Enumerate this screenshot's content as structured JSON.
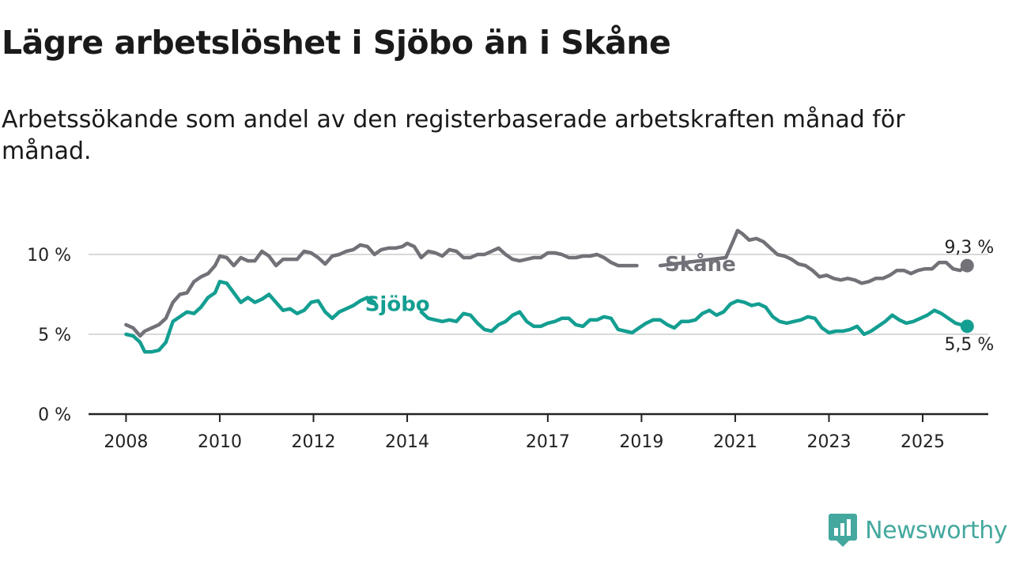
{
  "title": "Lägre arbetslöshet i Sjöbo än i Skåne",
  "subtitle": "Arbetssökande som andel av den registerbaserade arbetskraften månad för månad.",
  "brand": "Newsworthy",
  "colors": {
    "skane": "#737178",
    "sjobo": "#139e91",
    "grid": "#d9d9d9",
    "axis": "#222222",
    "brand": "#44a89f"
  },
  "chart_data": {
    "type": "line",
    "x_unit": "year (decimal)",
    "xlim": [
      2007.2,
      2026.4
    ],
    "ylim": [
      0,
      10
    ],
    "y_ticks": [
      {
        "value": 0,
        "label": "0 %"
      },
      {
        "value": 5,
        "label": "5 %"
      },
      {
        "value": 10,
        "label": "10 %"
      }
    ],
    "x_ticks": [
      {
        "value": 2008,
        "label": "2008"
      },
      {
        "value": 2010,
        "label": "2010"
      },
      {
        "value": 2012,
        "label": "2012"
      },
      {
        "value": 2014,
        "label": "2014"
      },
      {
        "value": 2017,
        "label": "2017"
      },
      {
        "value": 2019,
        "label": "2019"
      },
      {
        "value": 2021,
        "label": "2021"
      },
      {
        "value": 2023,
        "label": "2023"
      },
      {
        "value": 2025,
        "label": "2025"
      }
    ],
    "grid": true,
    "series": [
      {
        "name": "Skåne",
        "key": "skane",
        "end_label": "9,3 %",
        "label_at": [
          2019.5,
          9.4
        ],
        "gaps": [
          [
            2018.9,
            2019.4
          ],
          [
            2019.6,
            2020.8
          ]
        ],
        "points": [
          [
            2008.0,
            5.6
          ],
          [
            2008.15,
            5.4
          ],
          [
            2008.3,
            4.9
          ],
          [
            2008.4,
            5.2
          ],
          [
            2008.55,
            5.4
          ],
          [
            2008.7,
            5.6
          ],
          [
            2008.85,
            6.0
          ],
          [
            2009.0,
            7.0
          ],
          [
            2009.15,
            7.5
          ],
          [
            2009.3,
            7.6
          ],
          [
            2009.45,
            8.3
          ],
          [
            2009.6,
            8.6
          ],
          [
            2009.75,
            8.8
          ],
          [
            2009.9,
            9.3
          ],
          [
            2010.0,
            9.9
          ],
          [
            2010.15,
            9.8
          ],
          [
            2010.3,
            9.3
          ],
          [
            2010.45,
            9.8
          ],
          [
            2010.6,
            9.6
          ],
          [
            2010.75,
            9.6
          ],
          [
            2010.9,
            10.2
          ],
          [
            2011.05,
            9.9
          ],
          [
            2011.2,
            9.3
          ],
          [
            2011.35,
            9.7
          ],
          [
            2011.5,
            9.7
          ],
          [
            2011.65,
            9.7
          ],
          [
            2011.8,
            10.2
          ],
          [
            2011.95,
            10.1
          ],
          [
            2012.1,
            9.8
          ],
          [
            2012.25,
            9.4
          ],
          [
            2012.4,
            9.9
          ],
          [
            2012.55,
            10.0
          ],
          [
            2012.7,
            10.2
          ],
          [
            2012.85,
            10.3
          ],
          [
            2013.0,
            10.6
          ],
          [
            2013.15,
            10.5
          ],
          [
            2013.3,
            10.0
          ],
          [
            2013.45,
            10.3
          ],
          [
            2013.6,
            10.4
          ],
          [
            2013.75,
            10.4
          ],
          [
            2013.9,
            10.5
          ],
          [
            2014.0,
            10.7
          ],
          [
            2014.15,
            10.5
          ],
          [
            2014.3,
            9.8
          ],
          [
            2014.45,
            10.2
          ],
          [
            2014.6,
            10.1
          ],
          [
            2014.75,
            9.9
          ],
          [
            2014.9,
            10.3
          ],
          [
            2015.05,
            10.2
          ],
          [
            2015.2,
            9.8
          ],
          [
            2015.35,
            9.8
          ],
          [
            2015.5,
            10.0
          ],
          [
            2015.65,
            10.0
          ],
          [
            2015.8,
            10.2
          ],
          [
            2015.95,
            10.4
          ],
          [
            2016.1,
            10.0
          ],
          [
            2016.25,
            9.7
          ],
          [
            2016.4,
            9.6
          ],
          [
            2016.55,
            9.7
          ],
          [
            2016.7,
            9.8
          ],
          [
            2016.85,
            9.8
          ],
          [
            2017.0,
            10.1
          ],
          [
            2017.15,
            10.1
          ],
          [
            2017.3,
            10.0
          ],
          [
            2017.45,
            9.8
          ],
          [
            2017.6,
            9.8
          ],
          [
            2017.75,
            9.9
          ],
          [
            2017.9,
            9.9
          ],
          [
            2018.05,
            10.0
          ],
          [
            2018.2,
            9.8
          ],
          [
            2018.35,
            9.5
          ],
          [
            2018.5,
            9.3
          ],
          [
            2018.65,
            9.3
          ],
          [
            2018.8,
            9.3
          ],
          [
            2018.9,
            9.3
          ],
          [
            2019.4,
            9.3
          ],
          [
            2020.8,
            9.8
          ],
          [
            2020.95,
            10.8
          ],
          [
            2021.05,
            11.5
          ],
          [
            2021.15,
            11.3
          ],
          [
            2021.3,
            10.9
          ],
          [
            2021.45,
            11.0
          ],
          [
            2021.6,
            10.8
          ],
          [
            2021.75,
            10.4
          ],
          [
            2021.9,
            10.0
          ],
          [
            2022.05,
            9.9
          ],
          [
            2022.2,
            9.7
          ],
          [
            2022.35,
            9.4
          ],
          [
            2022.5,
            9.3
          ],
          [
            2022.65,
            9.0
          ],
          [
            2022.8,
            8.6
          ],
          [
            2022.95,
            8.7
          ],
          [
            2023.1,
            8.5
          ],
          [
            2023.25,
            8.4
          ],
          [
            2023.4,
            8.5
          ],
          [
            2023.55,
            8.4
          ],
          [
            2023.7,
            8.2
          ],
          [
            2023.85,
            8.3
          ],
          [
            2024.0,
            8.5
          ],
          [
            2024.15,
            8.5
          ],
          [
            2024.3,
            8.7
          ],
          [
            2024.45,
            9.0
          ],
          [
            2024.6,
            9.0
          ],
          [
            2024.75,
            8.8
          ],
          [
            2024.9,
            9.0
          ],
          [
            2025.05,
            9.1
          ],
          [
            2025.2,
            9.1
          ],
          [
            2025.35,
            9.5
          ],
          [
            2025.5,
            9.5
          ],
          [
            2025.65,
            9.1
          ],
          [
            2025.8,
            9.0
          ],
          [
            2025.95,
            9.3
          ]
        ]
      },
      {
        "name": "Sjöbo",
        "key": "sjobo",
        "end_label": "5,5 %",
        "label_at": [
          2013.1,
          6.9
        ],
        "gaps": [
          [
            2013.3,
            2014.3
          ]
        ],
        "points": [
          [
            2008.0,
            5.0
          ],
          [
            2008.15,
            4.9
          ],
          [
            2008.3,
            4.5
          ],
          [
            2008.4,
            3.9
          ],
          [
            2008.55,
            3.9
          ],
          [
            2008.7,
            4.0
          ],
          [
            2008.85,
            4.5
          ],
          [
            2009.0,
            5.8
          ],
          [
            2009.15,
            6.1
          ],
          [
            2009.3,
            6.4
          ],
          [
            2009.45,
            6.3
          ],
          [
            2009.6,
            6.7
          ],
          [
            2009.75,
            7.3
          ],
          [
            2009.9,
            7.6
          ],
          [
            2010.0,
            8.3
          ],
          [
            2010.15,
            8.2
          ],
          [
            2010.3,
            7.6
          ],
          [
            2010.45,
            7.0
          ],
          [
            2010.6,
            7.3
          ],
          [
            2010.75,
            7.0
          ],
          [
            2010.9,
            7.2
          ],
          [
            2011.05,
            7.5
          ],
          [
            2011.2,
            7.0
          ],
          [
            2011.35,
            6.5
          ],
          [
            2011.5,
            6.6
          ],
          [
            2011.65,
            6.3
          ],
          [
            2011.8,
            6.5
          ],
          [
            2011.95,
            7.0
          ],
          [
            2012.1,
            7.1
          ],
          [
            2012.25,
            6.4
          ],
          [
            2012.4,
            6.0
          ],
          [
            2012.55,
            6.4
          ],
          [
            2012.7,
            6.6
          ],
          [
            2012.85,
            6.8
          ],
          [
            2013.0,
            7.1
          ],
          [
            2013.15,
            7.3
          ],
          [
            2013.3,
            7.0
          ],
          [
            2014.3,
            6.4
          ],
          [
            2014.45,
            6.0
          ],
          [
            2014.6,
            5.9
          ],
          [
            2014.75,
            5.8
          ],
          [
            2014.9,
            5.9
          ],
          [
            2015.05,
            5.8
          ],
          [
            2015.2,
            6.3
          ],
          [
            2015.35,
            6.2
          ],
          [
            2015.5,
            5.7
          ],
          [
            2015.65,
            5.3
          ],
          [
            2015.8,
            5.2
          ],
          [
            2015.95,
            5.6
          ],
          [
            2016.1,
            5.8
          ],
          [
            2016.25,
            6.2
          ],
          [
            2016.4,
            6.4
          ],
          [
            2016.55,
            5.8
          ],
          [
            2016.7,
            5.5
          ],
          [
            2016.85,
            5.5
          ],
          [
            2017.0,
            5.7
          ],
          [
            2017.15,
            5.8
          ],
          [
            2017.3,
            6.0
          ],
          [
            2017.45,
            6.0
          ],
          [
            2017.6,
            5.6
          ],
          [
            2017.75,
            5.5
          ],
          [
            2017.9,
            5.9
          ],
          [
            2018.05,
            5.9
          ],
          [
            2018.2,
            6.1
          ],
          [
            2018.35,
            6.0
          ],
          [
            2018.5,
            5.3
          ],
          [
            2018.65,
            5.2
          ],
          [
            2018.8,
            5.1
          ],
          [
            2018.95,
            5.4
          ],
          [
            2019.1,
            5.7
          ],
          [
            2019.25,
            5.9
          ],
          [
            2019.4,
            5.9
          ],
          [
            2019.55,
            5.6
          ],
          [
            2019.7,
            5.4
          ],
          [
            2019.85,
            5.8
          ],
          [
            2020.0,
            5.8
          ],
          [
            2020.15,
            5.9
          ],
          [
            2020.3,
            6.3
          ],
          [
            2020.45,
            6.5
          ],
          [
            2020.6,
            6.2
          ],
          [
            2020.75,
            6.4
          ],
          [
            2020.9,
            6.9
          ],
          [
            2021.05,
            7.1
          ],
          [
            2021.2,
            7.0
          ],
          [
            2021.35,
            6.8
          ],
          [
            2021.5,
            6.9
          ],
          [
            2021.65,
            6.7
          ],
          [
            2021.8,
            6.1
          ],
          [
            2021.95,
            5.8
          ],
          [
            2022.1,
            5.7
          ],
          [
            2022.25,
            5.8
          ],
          [
            2022.4,
            5.9
          ],
          [
            2022.55,
            6.1
          ],
          [
            2022.7,
            6.0
          ],
          [
            2022.85,
            5.4
          ],
          [
            2023.0,
            5.1
          ],
          [
            2023.15,
            5.2
          ],
          [
            2023.3,
            5.2
          ],
          [
            2023.45,
            5.3
          ],
          [
            2023.6,
            5.5
          ],
          [
            2023.75,
            5.0
          ],
          [
            2023.9,
            5.2
          ],
          [
            2024.05,
            5.5
          ],
          [
            2024.2,
            5.8
          ],
          [
            2024.35,
            6.2
          ],
          [
            2024.5,
            5.9
          ],
          [
            2024.65,
            5.7
          ],
          [
            2024.8,
            5.8
          ],
          [
            2024.95,
            6.0
          ],
          [
            2025.1,
            6.2
          ],
          [
            2025.25,
            6.5
          ],
          [
            2025.4,
            6.3
          ],
          [
            2025.55,
            6.0
          ],
          [
            2025.7,
            5.7
          ],
          [
            2025.95,
            5.5
          ]
        ]
      }
    ]
  }
}
